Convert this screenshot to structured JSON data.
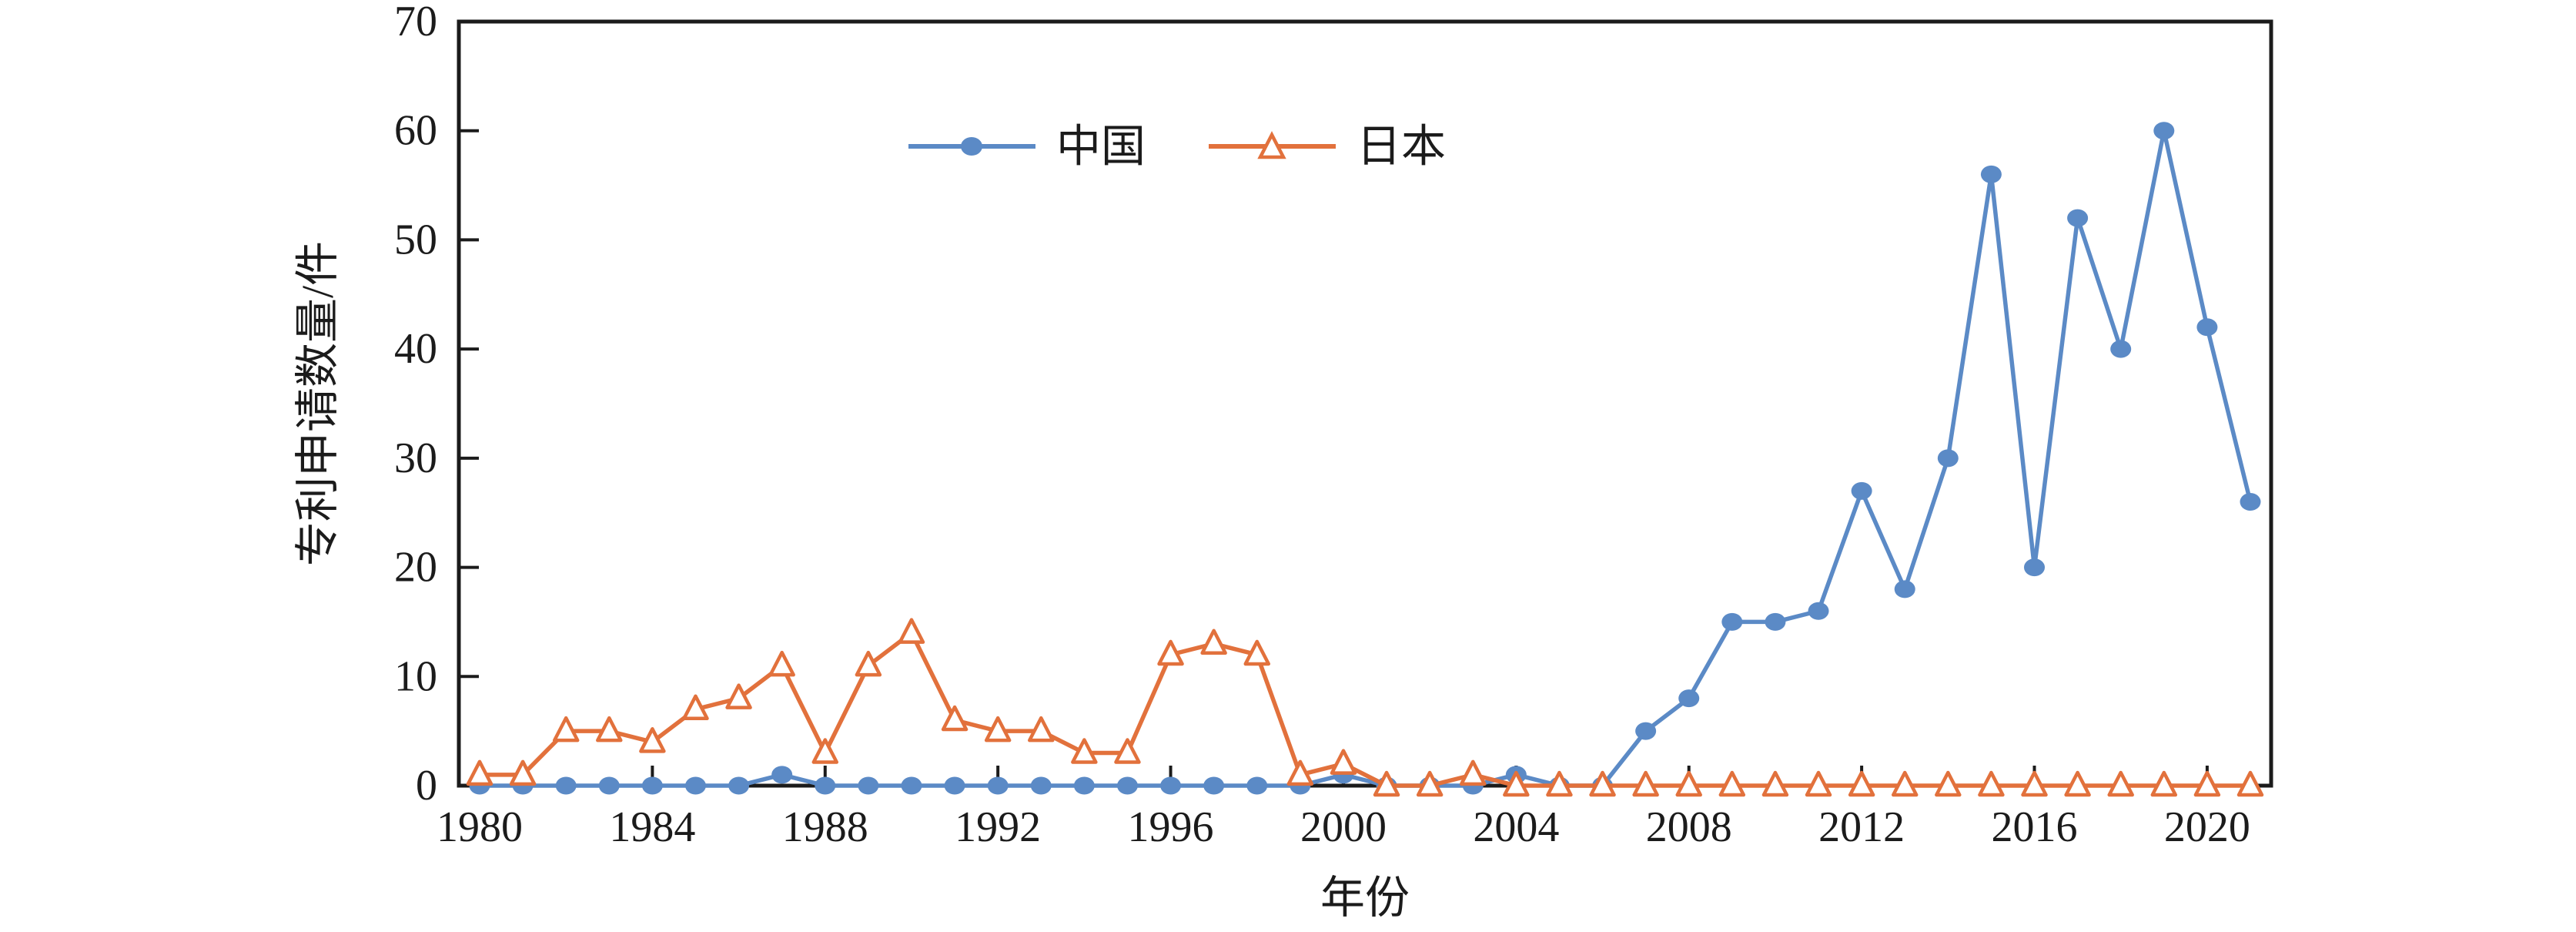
{
  "chart_data": {
    "type": "line",
    "title": "",
    "xlabel": "年份",
    "ylabel": "专利申请数量/件",
    "ylim": [
      0,
      70
    ],
    "ytick_step": 10,
    "yticks": [
      0,
      10,
      20,
      30,
      40,
      50,
      60,
      70
    ],
    "xticks": [
      1980,
      1984,
      1988,
      1992,
      1996,
      2000,
      2004,
      2008,
      2012,
      2016,
      2020
    ],
    "grid": false,
    "legend_position": "top-center",
    "frame": "full-box",
    "axis_color": "#1b1b1b",
    "x": [
      1980,
      1981,
      1982,
      1983,
      1984,
      1985,
      1986,
      1987,
      1988,
      1989,
      1990,
      1991,
      1992,
      1993,
      1994,
      1995,
      1996,
      1997,
      1998,
      1999,
      2000,
      2001,
      2002,
      2003,
      2004,
      2005,
      2006,
      2007,
      2008,
      2009,
      2010,
      2011,
      2012,
      2013,
      2014,
      2015,
      2016,
      2017,
      2018,
      2019,
      2020,
      2021
    ],
    "series": [
      {
        "name": "中国",
        "color": "#5B8AC6",
        "marker": "circle-filled",
        "values": [
          0,
          0,
          0,
          0,
          0,
          0,
          0,
          1,
          0,
          0,
          0,
          0,
          0,
          0,
          0,
          0,
          0,
          0,
          0,
          0,
          1,
          0,
          0,
          0,
          1,
          0,
          0,
          5,
          8,
          15,
          15,
          16,
          27,
          18,
          30,
          56,
          20,
          52,
          40,
          60,
          42,
          26
        ]
      },
      {
        "name": "日本",
        "color": "#E2713C",
        "marker": "triangle-open",
        "values": [
          1,
          1,
          5,
          5,
          4,
          7,
          8,
          11,
          3,
          11,
          14,
          6,
          5,
          5,
          3,
          3,
          12,
          13,
          12,
          1,
          2,
          0,
          0,
          1,
          0,
          0,
          0,
          0,
          0,
          0,
          0,
          0,
          0,
          0,
          0,
          0,
          0,
          0,
          0,
          0,
          0,
          0
        ]
      }
    ]
  }
}
